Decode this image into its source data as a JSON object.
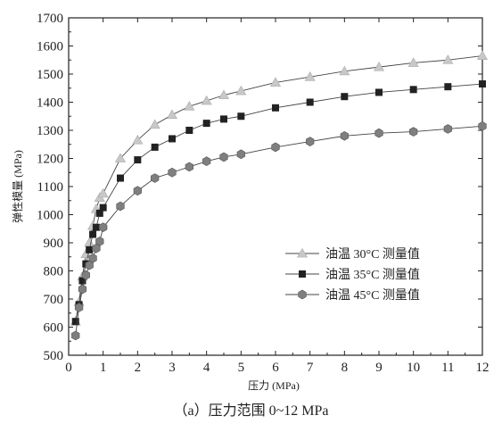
{
  "caption": "（a）压力范围 0~12 MPa",
  "chart_data": {
    "type": "line",
    "xlabel": "压力 (MPa)",
    "ylabel": "弹性模量 (MPa)",
    "xlim": [
      0,
      12
    ],
    "ylim": [
      500,
      1700
    ],
    "x_ticks": [
      0,
      1,
      2,
      3,
      4,
      5,
      6,
      7,
      8,
      9,
      10,
      11,
      12
    ],
    "y_ticks": [
      500,
      600,
      700,
      800,
      900,
      1000,
      1100,
      1200,
      1300,
      1400,
      1500,
      1600,
      1700
    ],
    "grid": false,
    "legend_position": "center-right",
    "series": [
      {
        "name": "油温 30°C 测量值",
        "marker": "triangle",
        "color": "#c8c8c8",
        "x": [
          0.2,
          0.3,
          0.4,
          0.5,
          0.6,
          0.7,
          0.8,
          0.9,
          1.0,
          1.5,
          2.0,
          2.5,
          3.0,
          3.5,
          4.0,
          4.5,
          5.0,
          6.0,
          7.0,
          8.0,
          9.0,
          10.0,
          11.0,
          12.0
        ],
        "y": [
          620,
          690,
          780,
          860,
          900,
          960,
          1020,
          1060,
          1075,
          1200,
          1265,
          1320,
          1355,
          1385,
          1405,
          1425,
          1440,
          1470,
          1490,
          1510,
          1525,
          1540,
          1550,
          1565
        ]
      },
      {
        "name": "油温 35°C 测量值",
        "marker": "square",
        "color": "#222222",
        "x": [
          0.2,
          0.3,
          0.4,
          0.5,
          0.6,
          0.7,
          0.8,
          0.9,
          1.0,
          1.5,
          2.0,
          2.5,
          3.0,
          3.5,
          4.0,
          4.5,
          5.0,
          6.0,
          7.0,
          8.0,
          9.0,
          10.0,
          11.0,
          12.0
        ],
        "y": [
          620,
          680,
          765,
          825,
          875,
          930,
          955,
          1005,
          1025,
          1130,
          1195,
          1240,
          1270,
          1300,
          1325,
          1340,
          1350,
          1380,
          1400,
          1420,
          1435,
          1445,
          1455,
          1465
        ]
      },
      {
        "name": "油温 45°C 测量值",
        "marker": "hexagon",
        "color": "#7f7f7f",
        "x": [
          0.2,
          0.3,
          0.4,
          0.5,
          0.6,
          0.7,
          0.8,
          0.9,
          1.0,
          1.5,
          2.0,
          2.5,
          3.0,
          3.5,
          4.0,
          4.5,
          5.0,
          6.0,
          7.0,
          8.0,
          9.0,
          10.0,
          11.0,
          12.0
        ],
        "y": [
          570,
          670,
          735,
          785,
          820,
          845,
          880,
          905,
          955,
          1030,
          1085,
          1130,
          1150,
          1170,
          1190,
          1205,
          1215,
          1240,
          1260,
          1280,
          1290,
          1295,
          1305,
          1315
        ]
      }
    ]
  }
}
